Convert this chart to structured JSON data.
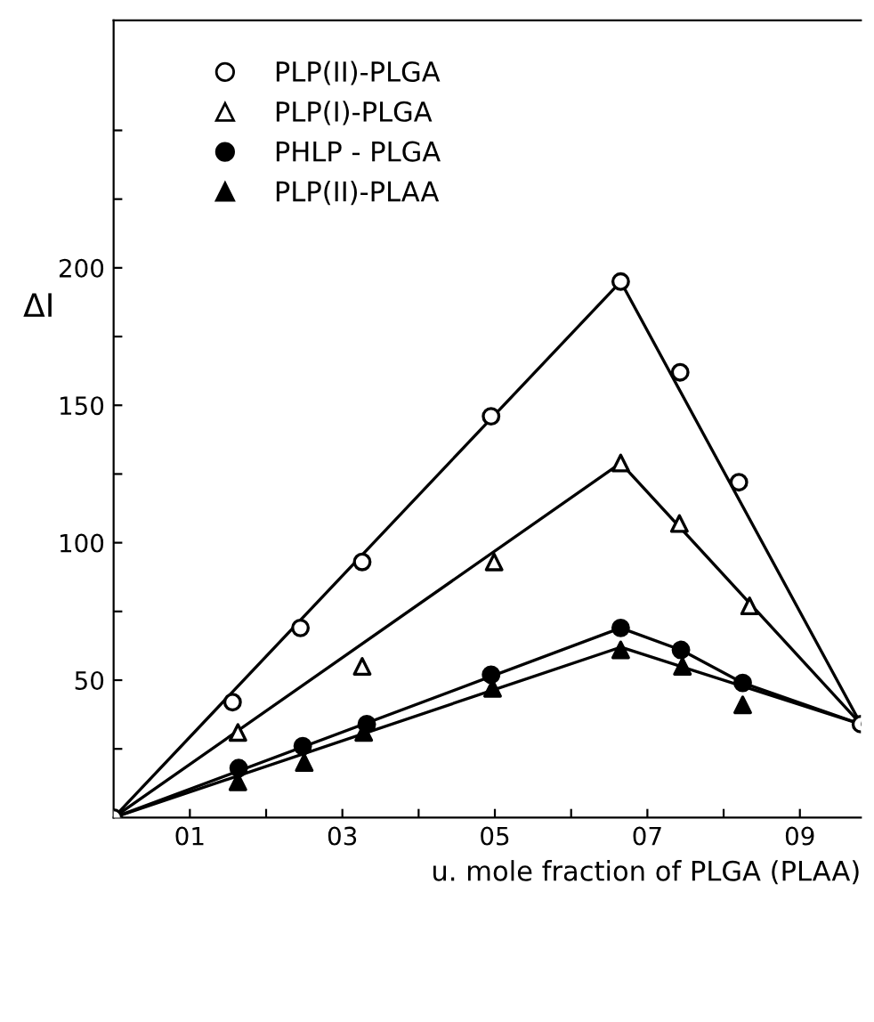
{
  "chart_data": {
    "type": "scatter",
    "xlabel": "u. mole fraction of PLGA (PLAA)",
    "ylabel": "ΔI",
    "xlim": [
      0,
      9.8
    ],
    "ylim": [
      0,
      290
    ],
    "xticks": [
      {
        "value": 1,
        "label": "01"
      },
      {
        "value": 2,
        "label": null
      },
      {
        "value": 3,
        "label": "03"
      },
      {
        "value": 4,
        "label": null
      },
      {
        "value": 5,
        "label": "05"
      },
      {
        "value": 6,
        "label": null
      },
      {
        "value": 7,
        "label": "07"
      },
      {
        "value": 8,
        "label": null
      },
      {
        "value": 9,
        "label": "09"
      }
    ],
    "yticks": [
      {
        "value": 25,
        "label": null
      },
      50,
      {
        "value": 75,
        "label": null
      },
      100,
      {
        "value": 125,
        "label": null
      },
      150,
      {
        "value": 175,
        "label": null
      },
      200,
      {
        "value": 225,
        "label": null
      },
      {
        "value": 250,
        "label": null
      }
    ],
    "grid": false,
    "legend": "top left",
    "series": [
      {
        "name": "PLP(II)-PLGA",
        "color": "#ffffff",
        "marker": "circle",
        "x": [
          0,
          1.56,
          2.45,
          3.26,
          4.95,
          6.65,
          7.43,
          8.2,
          9.8
        ],
        "values": [
          0,
          42,
          69,
          93,
          146,
          195,
          162,
          122,
          34
        ]
      },
      {
        "name": "PLP(I)-PLGA",
        "color": "#ffffff",
        "marker": "triangle",
        "x": [
          1.63,
          3.26,
          4.99,
          6.65,
          7.42,
          8.34
        ],
        "values": [
          31,
          55,
          93,
          129,
          107,
          77
        ]
      },
      {
        "name": "PHLP - PLGA",
        "color": "#000000",
        "marker": "circle",
        "x": [
          1.64,
          2.48,
          3.32,
          4.95,
          6.65,
          7.44,
          8.25
        ],
        "values": [
          18,
          26,
          34,
          52,
          69,
          61,
          49
        ]
      },
      {
        "name": "PLP(II)-PLAA",
        "color": "#000000",
        "marker": "triangle",
        "x": [
          1.63,
          2.5,
          3.28,
          4.97,
          6.65,
          7.46,
          8.25
        ],
        "values": [
          13,
          20,
          31,
          47,
          61,
          55,
          41
        ]
      },
      {
        "type": "line",
        "color": "#000000",
        "marker": "none",
        "x": [
          0,
          6.65,
          9.8
        ],
        "values": [
          0,
          195,
          34
        ]
      },
      {
        "type": "line",
        "color": "#000000",
        "marker": "none",
        "x": [
          0,
          6.65,
          9.8
        ],
        "values": [
          0,
          129,
          34
        ]
      },
      {
        "type": "line",
        "color": "#000000",
        "marker": "none",
        "x": [
          0,
          6.65,
          7.44,
          8.25,
          9.8
        ],
        "values": [
          0,
          69,
          61,
          49,
          34
        ]
      },
      {
        "type": "line",
        "color": "#000000",
        "marker": "none",
        "x": [
          0,
          6.65,
          9.8
        ],
        "values": [
          0,
          62,
          34
        ]
      }
    ]
  }
}
